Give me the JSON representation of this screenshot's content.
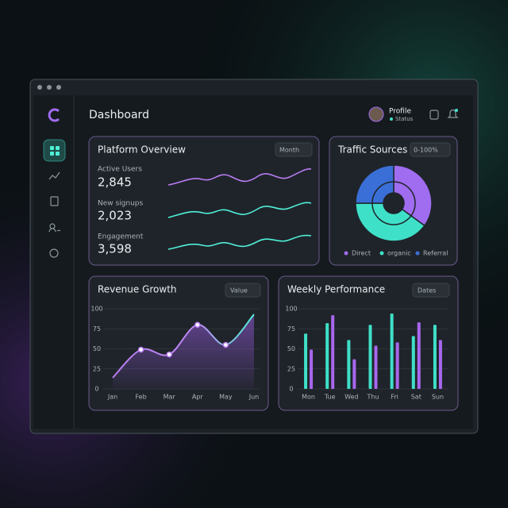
{
  "header": {
    "title": "Dashboard",
    "profile": "Profile",
    "status": "Status"
  },
  "platform_overview": {
    "title": "Platform Overview",
    "filter": "Month",
    "metrics": [
      {
        "label": "Active Users",
        "value": "2,845"
      },
      {
        "label": "New signups",
        "value": "2,023"
      },
      {
        "label": "Engagement",
        "value": "3,598"
      }
    ]
  },
  "traffic_sources": {
    "title": "Traffic Sources",
    "filter": "0-100%",
    "chart": {
      "type": "pie",
      "categories": [
        "Direct",
        "organic",
        "Referral"
      ],
      "values": [
        35,
        40,
        25
      ],
      "colors": [
        "#a06cf0",
        "#3fe0c8",
        "#3b6fd8"
      ]
    }
  },
  "revenue_growth": {
    "title": "Revenue Growth",
    "filter": "Value",
    "chart": {
      "type": "line",
      "categories": [
        "Jan",
        "Feb",
        "Mar",
        "Apr",
        "May",
        "Jun"
      ],
      "values": [
        14,
        49,
        43,
        80,
        55,
        93
      ],
      "color": "#b77cf2",
      "ylim": [
        0,
        100
      ],
      "yticks": [
        0,
        25,
        50,
        75,
        100
      ]
    }
  },
  "weekly_performance": {
    "title": "Weekly Performance",
    "filter": "Dates",
    "chart": {
      "type": "bar",
      "categories": [
        "Mon",
        "Tue",
        "Wed",
        "Thu",
        "Fri",
        "Sat",
        "Sun"
      ],
      "series": [
        {
          "color": "#3fe0c8",
          "values": [
            69,
            82,
            61,
            80,
            94,
            66,
            80
          ]
        },
        {
          "color": "#a867ee",
          "values": [
            49,
            92,
            37,
            54,
            58,
            83,
            61
          ]
        }
      ],
      "ylim": [
        0,
        100
      ],
      "yticks": [
        0,
        25,
        50,
        75,
        100
      ]
    }
  }
}
